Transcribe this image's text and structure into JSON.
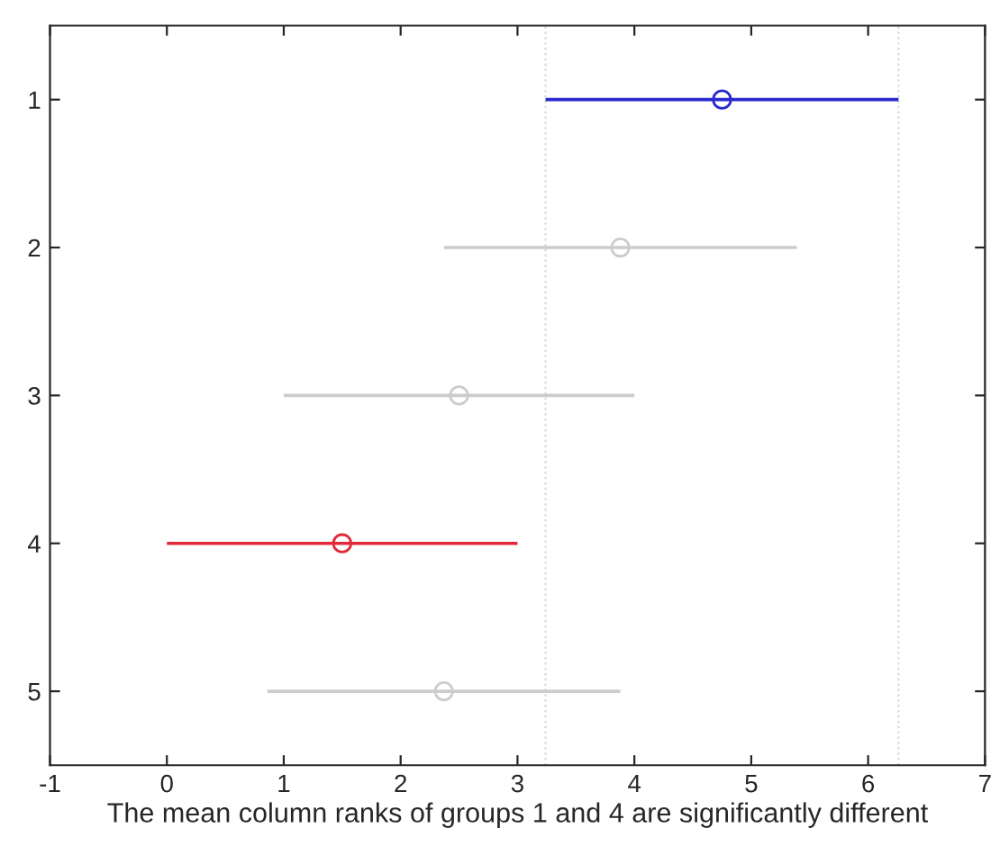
{
  "chart_data": {
    "type": "scatter",
    "orientation": "horizontal",
    "xlabel": "The mean column ranks of groups 1 and 4 are significantly different",
    "categories": [
      "1",
      "2",
      "3",
      "4",
      "5"
    ],
    "values": [
      4.75,
      3.88,
      2.5,
      1.5,
      2.37
    ],
    "errors": [
      1.51,
      1.51,
      1.5,
      1.5,
      1.51
    ],
    "colors": [
      "#2a2ad0",
      "#cccccc",
      "#cccccc",
      "#e02a3a",
      "#cccccc"
    ],
    "marker": "circle",
    "xlim": [
      -1,
      7
    ],
    "xticks": [
      -1,
      0,
      1,
      2,
      3,
      4,
      5,
      6,
      7
    ],
    "ref_lines": [
      {
        "axis": "x",
        "value": 3.24,
        "color": "#d8d8d8",
        "line_style": "dotted"
      },
      {
        "axis": "x",
        "value": 6.26,
        "color": "#d8d8d8",
        "line_style": "dotted"
      }
    ],
    "grid": false
  }
}
